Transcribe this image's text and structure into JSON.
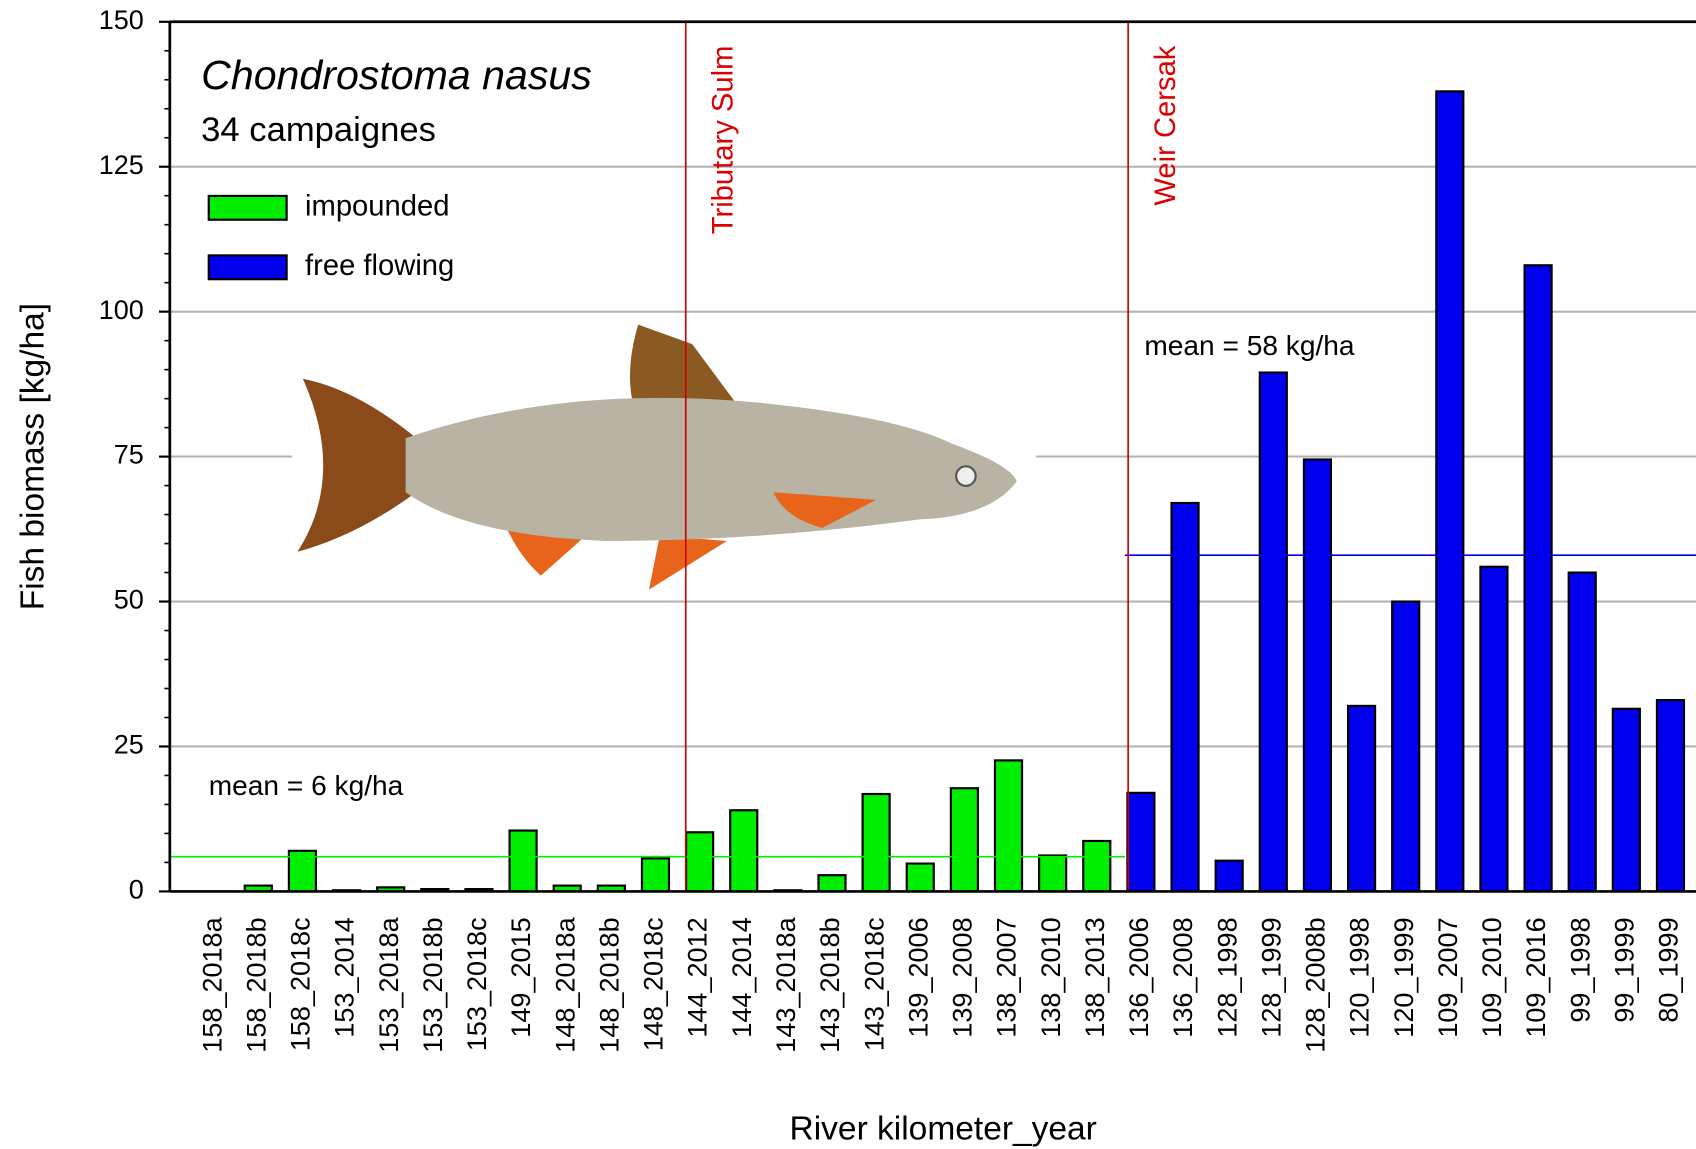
{
  "chart_data": {
    "type": "bar",
    "title": "Chondrostoma nasus",
    "subtitle": "34 campaignes",
    "x_label": "River kilometer_year",
    "y_label": "Fish biomass [kg/ha]",
    "categories": [
      "158_2018a",
      "158_2018b",
      "158_2018c",
      "153_2014",
      "153_2018a",
      "153_2018b",
      "153_2018c",
      "149_2015",
      "148_2018a",
      "148_2018b",
      "148_2018c",
      "144_2012",
      "144_2014",
      "143_2018a",
      "143_2018b",
      "143_2018c",
      "139_2006",
      "139_2008",
      "138_2007",
      "138_2010",
      "138_2013",
      "136_2006",
      "136_2008",
      "128_1998",
      "128_1999",
      "128_2008b",
      "120_1998",
      "120_1999",
      "109_2007",
      "109_2010",
      "109_2016",
      "99_1998",
      "99_1999",
      "80_1999"
    ],
    "series": [
      {
        "name": "impounded",
        "color": "#00ee00",
        "mean": 6,
        "mean_label": "mean = 6 kg/ha",
        "values": [
          0,
          1,
          7,
          0.2,
          0.7,
          0.4,
          0.4,
          10.5,
          1,
          1,
          5.7,
          10.2,
          14,
          0.2,
          2.8,
          16.8,
          4.8,
          17.8,
          22.6,
          6.2,
          8.7,
          null,
          null,
          null,
          null,
          null,
          null,
          null,
          null,
          null,
          null,
          null,
          null,
          null
        ]
      },
      {
        "name": "free flowing",
        "color": "#0000ee",
        "mean": 58,
        "mean_label": "mean = 58 kg/ha",
        "values": [
          null,
          null,
          null,
          null,
          null,
          null,
          null,
          null,
          null,
          null,
          null,
          null,
          null,
          null,
          null,
          null,
          null,
          null,
          null,
          null,
          null,
          17,
          67,
          5.3,
          89.5,
          74.5,
          32,
          50,
          138,
          56,
          108,
          55,
          31.5,
          33
        ]
      }
    ],
    "annotations": [
      "Tributary Sulm",
      "Weir Cersak"
    ],
    "ylim": [
      0,
      150
    ],
    "yticks": [
      0,
      25,
      50,
      75,
      100,
      125,
      150
    ],
    "grid": true
  }
}
